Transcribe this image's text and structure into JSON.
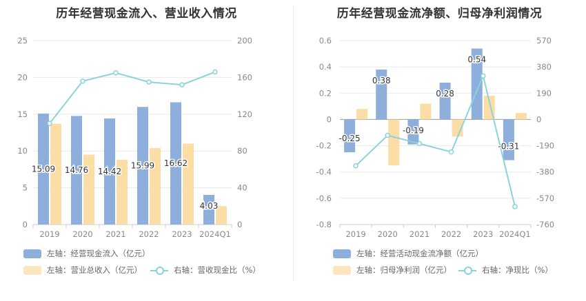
{
  "colors": {
    "bar_primary": "#8eaedb",
    "bar_secondary": "#fdd99c",
    "line": "#89d3da",
    "grid": "#e8e8e8",
    "axis_text": "#888888"
  },
  "chart_data": [
    {
      "type": "bar+line",
      "title": "历年经营现金流入、营业收入情况",
      "categories": [
        "2019",
        "2020",
        "2021",
        "2022",
        "2023",
        "2024Q1"
      ],
      "left_axis": {
        "min": 0,
        "max": 25,
        "ticks": [
          "0",
          "5",
          "10",
          "15",
          "20",
          "25"
        ]
      },
      "right_axis": {
        "min": 0,
        "max": 200,
        "ticks": [
          "0",
          "40",
          "80",
          "120",
          "160",
          "200"
        ]
      },
      "series": [
        {
          "name": "左轴：经营现金流入（亿元）",
          "type": "bar",
          "axis": "left",
          "values": [
            15.09,
            14.76,
            14.42,
            15.99,
            16.62,
            4.03
          ],
          "labels": [
            "15.09",
            "14.76",
            "14.42",
            "15.99",
            "16.62",
            "4.03"
          ]
        },
        {
          "name": "左轴：营业总收入（亿元）",
          "type": "bar",
          "axis": "left",
          "values": [
            13.7,
            9.5,
            8.8,
            10.4,
            11.0,
            2.5
          ]
        },
        {
          "name": "右轴：营收现金比（%）",
          "type": "line",
          "axis": "right",
          "values": [
            110,
            156,
            165,
            155,
            152,
            166
          ]
        }
      ]
    },
    {
      "type": "bar+line",
      "title": "历年经营现金流净额、归母净利润情况",
      "categories": [
        "2019",
        "2020",
        "2021",
        "2022",
        "2023",
        "2024Q1"
      ],
      "left_axis": {
        "min": -0.8,
        "max": 0.6,
        "ticks": [
          "-0.8",
          "-0.6",
          "-0.4",
          "-0.2",
          "0",
          "0.2",
          "0.4",
          "0.6"
        ]
      },
      "right_axis": {
        "min": -760,
        "max": 570,
        "ticks": [
          "-760",
          "-570",
          "-380",
          "-190",
          "0",
          "190",
          "380",
          "570"
        ]
      },
      "series": [
        {
          "name": "左轴：经营活动现金流净额（亿元）",
          "type": "bar",
          "axis": "left",
          "values": [
            -0.25,
            0.38,
            -0.19,
            0.28,
            0.54,
            -0.31
          ],
          "labels": [
            "-0.25",
            "0.38",
            "-0.19",
            "0.28",
            "0.54",
            "-0.31"
          ]
        },
        {
          "name": "左轴：归母净利润（亿元）",
          "type": "bar",
          "axis": "left",
          "values": [
            0.08,
            -0.35,
            0.12,
            -0.13,
            0.18,
            0.05
          ]
        },
        {
          "name": "右轴：净现比（%）",
          "type": "line",
          "axis": "right",
          "values": [
            -335,
            -115,
            -175,
            -235,
            315,
            -630
          ]
        }
      ]
    }
  ]
}
